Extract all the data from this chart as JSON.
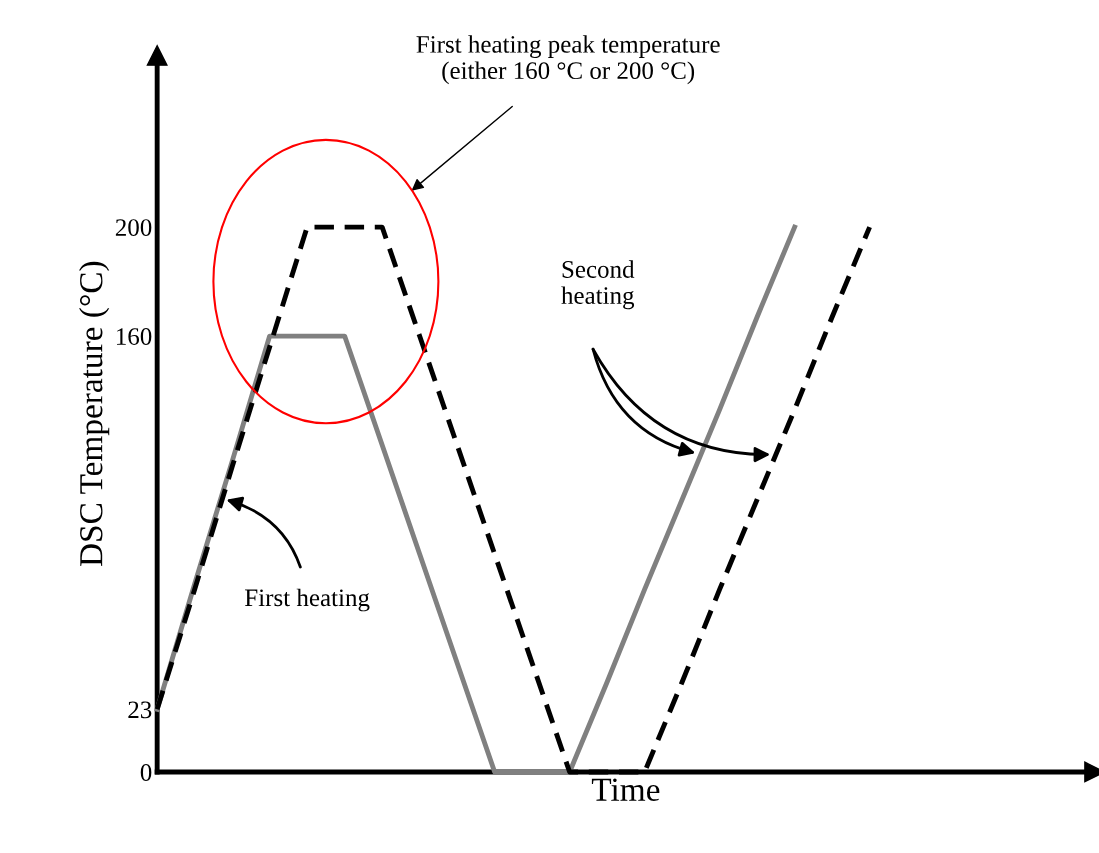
{
  "chart_data": {
    "type": "line",
    "xlabel": "Time",
    "ylabel": "DSC Temperature (°C)",
    "categories": [
      null,
      null,
      null,
      null,
      null,
      null,
      null,
      null,
      null,
      null,
      null,
      null,
      null,
      null,
      null,
      null,
      null,
      null,
      null,
      null,
      null,
      null,
      null,
      null,
      null
    ],
    "ylim": [
      0,
      263
    ],
    "yticks": [
      0,
      23,
      160,
      200
    ],
    "tick_labels": "y",
    "grid": false,
    "legend": false,
    "series": [
      {
        "color": "#808080",
        "line_style": "solid",
        "values": [
          23,
          69,
          114,
          160,
          160,
          160,
          120,
          80,
          40,
          0,
          0,
          0,
          33,
          67,
          100,
          133,
          167,
          200,
          null,
          null,
          null,
          null,
          null,
          null,
          null
        ]
      },
      {
        "color": "#000000",
        "line_style": "dashed",
        "values": [
          23,
          67,
          112,
          156,
          200,
          200,
          200,
          160,
          120,
          80,
          40,
          0,
          0,
          0,
          33,
          67,
          100,
          133,
          167,
          200,
          null,
          null,
          null,
          null,
          null
        ]
      }
    ],
    "annotations": [
      "First heating peak temperature\n(either 160 °C or 200 °C)",
      "First heating",
      "Second\nheating"
    ]
  }
}
